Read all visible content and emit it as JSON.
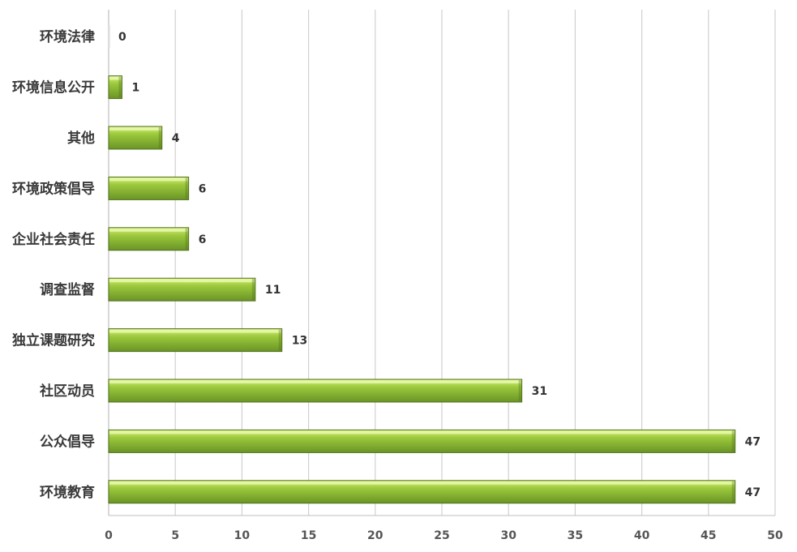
{
  "chart_data": {
    "type": "bar",
    "orientation": "horizontal",
    "categories": [
      "环境法律",
      "环境信息公开",
      "其他",
      "环境政策倡导",
      "企业社会责任",
      "调查监督",
      "独立课题研究",
      "社区动员",
      "公众倡导",
      "环境教育"
    ],
    "values": [
      0,
      1,
      4,
      6,
      6,
      11,
      13,
      31,
      47,
      47
    ],
    "value_labels": [
      "0",
      "1",
      "4",
      "6",
      "6",
      "11",
      "13",
      "31",
      "47",
      "47"
    ],
    "xlim": [
      0,
      50
    ],
    "x_ticks": [
      "0",
      "5",
      "10",
      "15",
      "20",
      "25",
      "30",
      "35",
      "40",
      "45",
      "50"
    ],
    "title": "",
    "xlabel": "",
    "ylabel": "",
    "grid": "vertical",
    "legend": "none",
    "colors": {
      "bar_light": "#d6f07a",
      "bar_mid": "#9bc83c",
      "bar_dark": "#6a9426",
      "bar_edge": "#4f6f1b",
      "grid": "#d0d0d0",
      "axis": "#bfbfbf"
    }
  }
}
